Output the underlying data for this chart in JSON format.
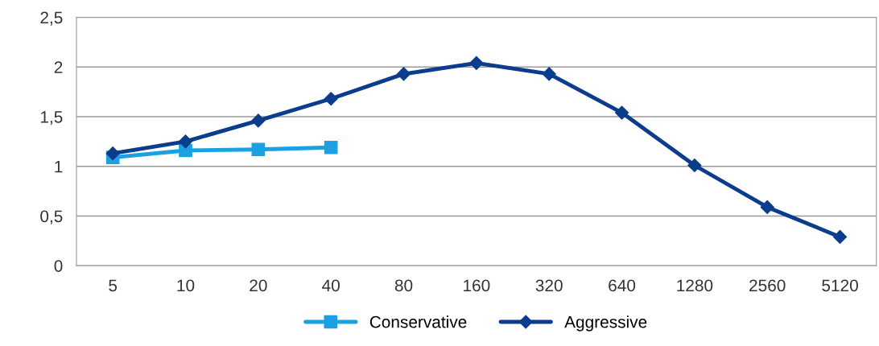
{
  "chart_data": {
    "type": "line",
    "categories": [
      "5",
      "10",
      "20",
      "40",
      "80",
      "160",
      "320",
      "640",
      "1280",
      "2560",
      "5120"
    ],
    "series": [
      {
        "name": "Conservative",
        "color": "#1ba1e2",
        "marker": "square",
        "values": [
          1.09,
          1.16,
          1.17,
          1.19,
          null,
          null,
          null,
          null,
          null,
          null,
          null
        ]
      },
      {
        "name": "Aggressive",
        "color": "#0c3c8c",
        "marker": "diamond",
        "values": [
          1.13,
          1.25,
          1.46,
          1.68,
          1.93,
          2.04,
          1.93,
          1.54,
          1.01,
          0.59,
          0.29
        ]
      }
    ],
    "ylim": [
      0,
      2.5
    ],
    "yticks": [
      0,
      {
        "value": 0.5,
        "label": "0,5"
      },
      1,
      {
        "value": 1.5,
        "label": "1,5"
      },
      2,
      {
        "value": 2.5,
        "label": "2,5"
      }
    ],
    "grid": "y",
    "legend": "bottom",
    "line_style": "solid"
  }
}
